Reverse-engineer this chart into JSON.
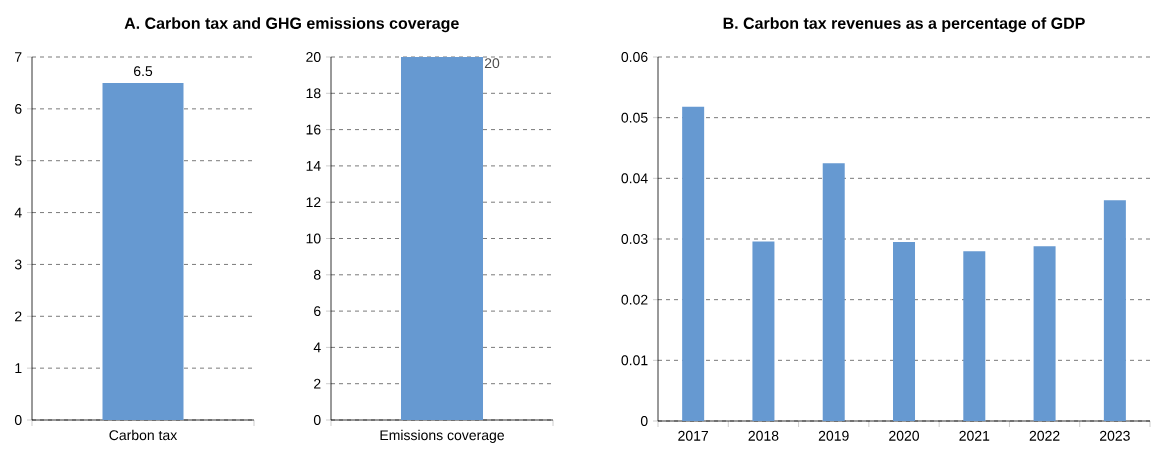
{
  "chart_data": [
    {
      "type": "bar",
      "title": "A. Carbon tax and GHG emissions coverage",
      "categories": [
        "Carbon tax"
      ],
      "values": [
        6.5
      ],
      "color": "#6699d1",
      "ylim": [
        0,
        7
      ],
      "yticks": [
        0,
        1,
        2,
        3,
        4,
        5,
        6,
        7
      ],
      "grid": "y",
      "data_labels": true
    },
    {
      "type": "bar",
      "categories": [
        "Emissions coverage"
      ],
      "values": [
        20
      ],
      "color": "#6699d1",
      "ylim": [
        0,
        20
      ],
      "yticks": [
        0,
        2,
        4,
        6,
        8,
        10,
        12,
        14,
        16,
        18,
        20
      ],
      "grid": "y",
      "data_labels": true
    },
    {
      "type": "bar",
      "title": "B. Carbon tax revenues as a percentage of GDP",
      "categories": [
        "2017",
        "2018",
        "2019",
        "2020",
        "2021",
        "2022",
        "2023"
      ],
      "values": [
        0.0518,
        0.0296,
        0.0425,
        0.0295,
        0.028,
        0.0288,
        0.0364
      ],
      "color": "#6699d1",
      "ylim": [
        0,
        0.06
      ],
      "yticks": [
        0,
        0.01,
        0.02,
        0.03,
        0.04,
        0.05,
        0.06
      ],
      "grid": "y"
    }
  ]
}
